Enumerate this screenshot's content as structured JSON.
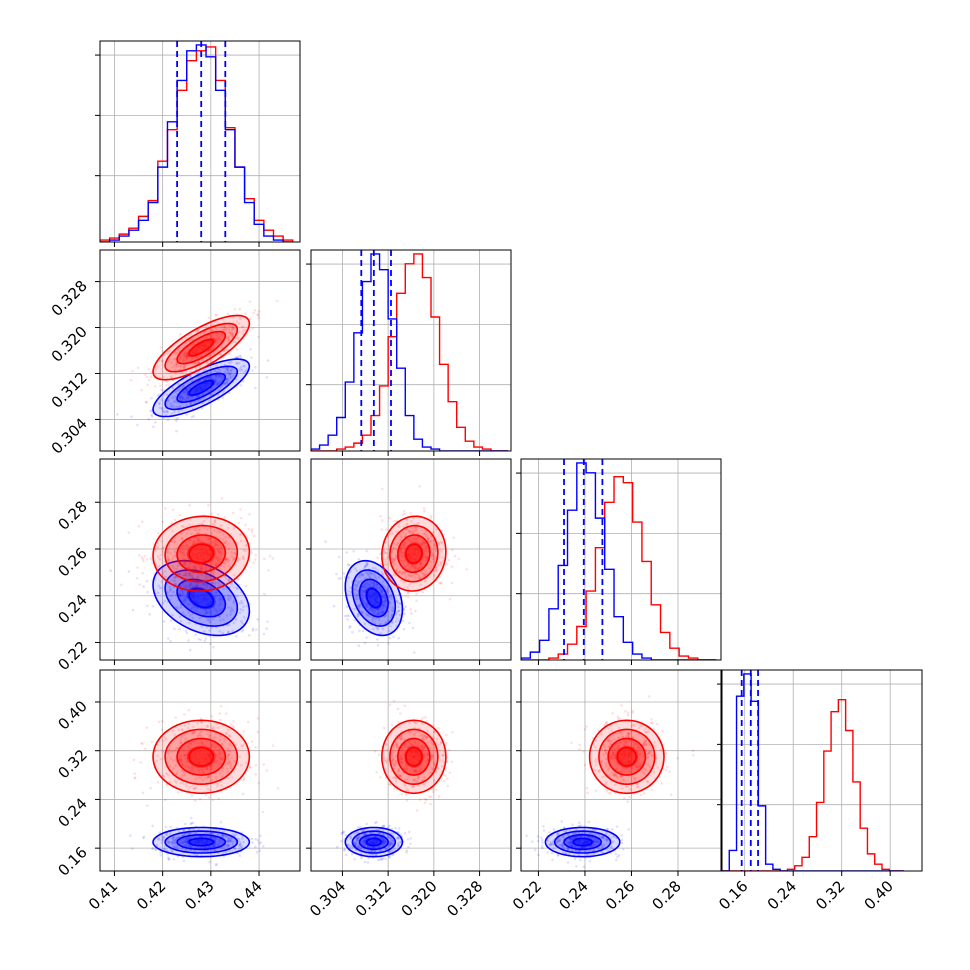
{
  "chart_data": {
    "type": "corner",
    "title": "",
    "colors": {
      "blue": "#0000ff",
      "red": "#ff0000",
      "grid": "#b0b0b0"
    },
    "parameters": [
      {
        "range": [
          0.407,
          0.4485
        ],
        "ticks": [
          "0.41",
          "0.42",
          "0.43",
          "0.44"
        ],
        "tick_values": [
          0.41,
          0.42,
          0.43,
          0.44
        ]
      },
      {
        "range": [
          0.2985,
          0.3335
        ],
        "ticks": [
          "0.304",
          "0.312",
          "0.320",
          "0.328"
        ],
        "tick_values": [
          0.304,
          0.312,
          0.32,
          0.328
        ]
      },
      {
        "range": [
          0.2125,
          0.2985
        ],
        "ticks": [
          "0.22",
          "0.24",
          "0.26",
          "0.28"
        ],
        "tick_values": [
          0.22,
          0.24,
          0.26,
          0.28
        ]
      },
      {
        "range": [
          0.1225,
          0.4525
        ],
        "ticks": [
          "0.16",
          "0.24",
          "0.32",
          "0.40"
        ],
        "tick_values": [
          0.16,
          0.24,
          0.32,
          0.4
        ]
      }
    ],
    "series": [
      {
        "color": "#0000ff",
        "mean": [
          0.428,
          0.3095,
          0.239,
          0.17
        ],
        "std": [
          0.005,
          0.0025,
          0.008,
          0.012
        ],
        "corr": {
          "0-1": 0.75,
          "0-2": -0.35,
          "1-2": -0.3,
          "0-3": 0.0,
          "1-3": 0.0,
          "2-3": 0.0
        },
        "quantiles": [
          [
            0.423,
            0.428,
            0.433
          ],
          [
            0.3073,
            0.3095,
            0.3125
          ],
          [
            0.231,
            0.2395,
            0.2475
          ],
          [
            0.155,
            0.17,
            0.182
          ]
        ]
      },
      {
        "color": "#ff0000",
        "mean": [
          0.428,
          0.3165,
          0.258,
          0.31
        ],
        "std": [
          0.005,
          0.0028,
          0.008,
          0.03
        ],
        "corr": {
          "0-1": 0.75,
          "0-2": 0.05,
          "1-2": 0.05,
          "0-3": 0.0,
          "1-3": 0.0,
          "2-3": 0.0
        }
      }
    ],
    "histograms_1d": [
      {
        "edges": [
          0.407,
          0.409,
          0.411,
          0.413,
          0.415,
          0.417,
          0.419,
          0.421,
          0.423,
          0.425,
          0.427,
          0.429,
          0.431,
          0.433,
          0.435,
          0.437,
          0.439,
          0.441,
          0.443,
          0.445,
          0.447
        ],
        "blue": [
          0,
          1,
          3,
          6,
          11,
          20,
          38,
          61,
          82,
          97,
          100,
          94,
          77,
          57,
          38,
          20,
          9,
          3,
          1,
          0
        ],
        "red": [
          1,
          2,
          4,
          7,
          13,
          21,
          41,
          57,
          77,
          92,
          97,
          99,
          82,
          58,
          38,
          22,
          11,
          6,
          3,
          1
        ]
      },
      {
        "edges": [
          0.2985,
          0.3,
          0.3015,
          0.303,
          0.3045,
          0.306,
          0.3075,
          0.309,
          0.3105,
          0.312,
          0.3135,
          0.315,
          0.3165,
          0.318,
          0.3195,
          0.321,
          0.3225,
          0.324,
          0.3255,
          0.327,
          0.3285,
          0.33,
          0.3315,
          0.333
        ],
        "blue": [
          1,
          3,
          8,
          17,
          35,
          60,
          86,
          100,
          92,
          67,
          42,
          18,
          6,
          2,
          1,
          0,
          0,
          0,
          0,
          0,
          0,
          0,
          0
        ],
        "red": [
          0,
          0,
          0,
          1,
          2,
          4,
          8,
          18,
          33,
          58,
          80,
          95,
          100,
          88,
          68,
          44,
          25,
          12,
          5,
          2,
          1,
          0,
          0
        ]
      },
      {
        "edges": [
          0.2125,
          0.2165,
          0.2205,
          0.2245,
          0.2285,
          0.2325,
          0.2365,
          0.2405,
          0.2445,
          0.2485,
          0.2525,
          0.2565,
          0.2605,
          0.2645,
          0.2685,
          0.2725,
          0.2765,
          0.2805,
          0.2845,
          0.2885,
          0.2925,
          0.2965
        ],
        "blue": [
          1,
          4,
          10,
          26,
          48,
          76,
          100,
          95,
          72,
          46,
          22,
          9,
          3,
          1,
          0,
          0,
          0,
          0,
          0,
          0,
          0
        ],
        "red": [
          0,
          0,
          0,
          1,
          3,
          8,
          17,
          35,
          57,
          80,
          93,
          90,
          70,
          50,
          28,
          14,
          6,
          2,
          1,
          0,
          0
        ]
      },
      {
        "edges": [
          0.1225,
          0.1345,
          0.1465,
          0.1585,
          0.1705,
          0.1825,
          0.1945,
          0.2065,
          0.2185,
          0.2305,
          0.2425,
          0.2545,
          0.2665,
          0.2785,
          0.2905,
          0.3025,
          0.3145,
          0.3265,
          0.3385,
          0.3505,
          0.3625,
          0.3745,
          0.3865,
          0.3985,
          0.4105,
          0.4225
        ],
        "blue": [
          0,
          12,
          102,
          115,
          99,
          38,
          4,
          1,
          0,
          0,
          0,
          0,
          0,
          0,
          0,
          0,
          0,
          0,
          0,
          0,
          0,
          0,
          0,
          0,
          0
        ],
        "red": [
          0,
          0,
          0,
          0,
          0,
          0,
          0,
          0,
          0,
          1,
          3,
          8,
          20,
          40,
          70,
          93,
          100,
          82,
          52,
          25,
          10,
          4,
          1,
          0,
          0
        ]
      }
    ],
    "contour_levels_sigma": [
      0.5,
      1.0,
      1.5,
      2.0
    ],
    "grid": true
  }
}
